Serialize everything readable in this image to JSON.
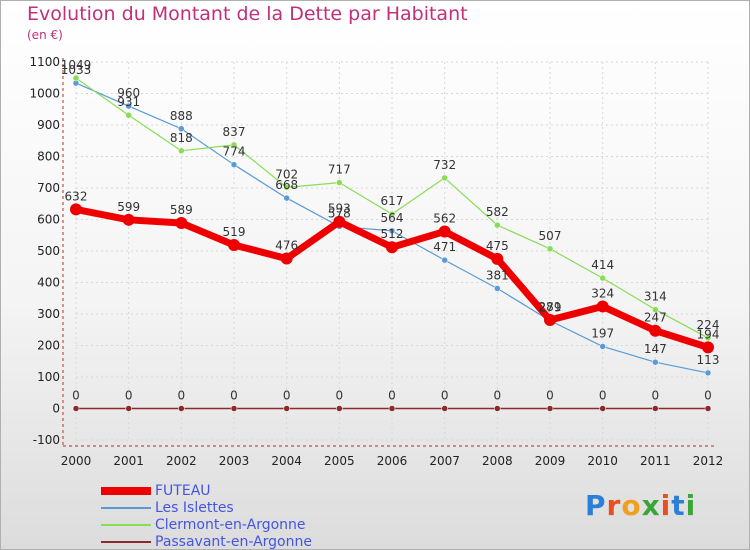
{
  "title": "Evolution du Montant de la Dette par Habitant",
  "subtitle": "(en €)",
  "logo_text": "Proxiti",
  "colors": {
    "title": "#c0307a",
    "legend_text": "#4455dd"
  },
  "chart_data": {
    "type": "line",
    "title": "Evolution du Montant de la Dette par Habitant",
    "subtitle": "(en €)",
    "xlabel": "",
    "ylabel": "",
    "x": [
      "2000",
      "2001",
      "2002",
      "2003",
      "2004",
      "2005",
      "2006",
      "2007",
      "2008",
      "2009",
      "2010",
      "2011",
      "2012"
    ],
    "ylim": [
      -100,
      1100
    ],
    "yticks": [
      -100,
      0,
      100,
      200,
      300,
      400,
      500,
      600,
      700,
      800,
      900,
      1000,
      1100
    ],
    "grid": true,
    "legend_position": "bottom-left",
    "series": [
      {
        "name": "FUTEAU",
        "color": "#ee0000",
        "width": 7,
        "marker": 6,
        "values": [
          632,
          599,
          589,
          519,
          476,
          593,
          512,
          562,
          475,
          281,
          324,
          247,
          194
        ],
        "labels": [
          "632",
          "599",
          "589",
          "519",
          "476",
          "593",
          "512",
          "562",
          "475",
          "281",
          "324",
          "247",
          "194"
        ]
      },
      {
        "name": "Les Islettes",
        "color": "#5b9bd5",
        "width": 1.2,
        "marker": 3,
        "values": [
          1033,
          960,
          888,
          774,
          668,
          578,
          564,
          471,
          381,
          279,
          197,
          147,
          113
        ],
        "labels": [
          "1033",
          "960",
          "888",
          "774",
          "668",
          "578",
          "564",
          "471",
          "381",
          "279",
          "197",
          "147",
          "113"
        ]
      },
      {
        "name": "Clermont-en-Argonne",
        "color": "#88dd55",
        "width": 1.2,
        "marker": 3,
        "values": [
          1049,
          931,
          818,
          837,
          702,
          717,
          617,
          732,
          582,
          507,
          414,
          314,
          224
        ],
        "labels": [
          "1049",
          "931",
          "818",
          "837",
          "702",
          "717",
          "617",
          "732",
          "582",
          "507",
          "414",
          "314",
          "224"
        ]
      },
      {
        "name": "Passavant-en-Argonne",
        "color": "#8b2a2a",
        "width": 1.5,
        "marker": 3,
        "values": [
          0,
          0,
          0,
          0,
          0,
          0,
          0,
          0,
          0,
          0,
          0,
          0,
          0
        ],
        "labels": [
          "0",
          "0",
          "0",
          "0",
          "0",
          "0",
          "0",
          "0",
          "0",
          "0",
          "0",
          "0",
          "0"
        ]
      }
    ]
  }
}
